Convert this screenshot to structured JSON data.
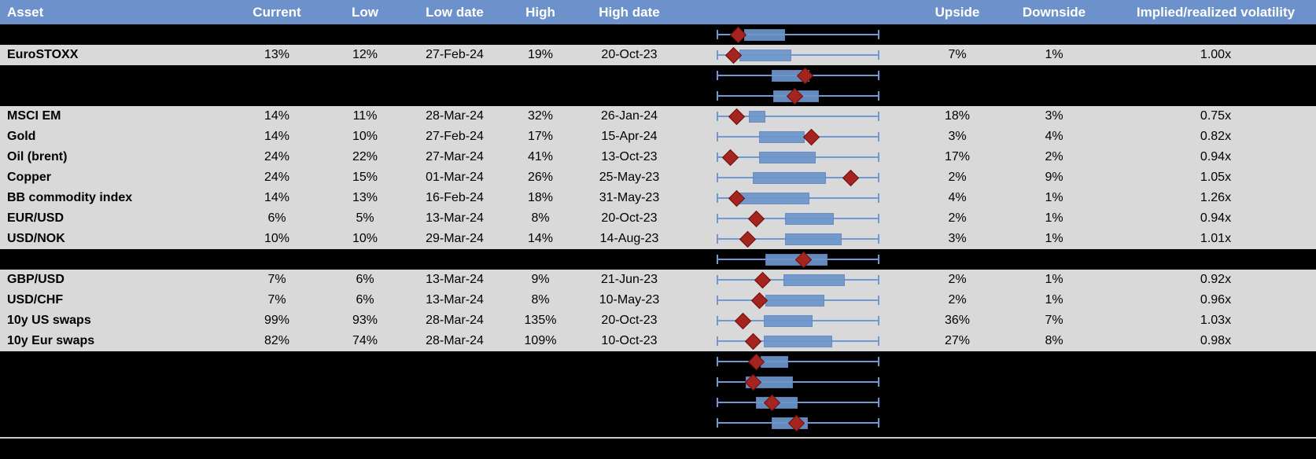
{
  "header": {
    "asset": "Asset",
    "current": "Current",
    "low": "Low",
    "low_date": "Low date",
    "high": "High",
    "high_date": "High date",
    "upside": "Upside",
    "downside": "Downside",
    "implied": "Implied/realized volatility"
  },
  "colors": {
    "header_bg": "#6D92CB",
    "header_text": "#FFFFFF",
    "row_bg": "#D9D9D9",
    "band_bg": "#000000",
    "text": "#000000",
    "whisker": "#6F99D3",
    "box_fill": "#6D96CB",
    "box_border": "#6287BD",
    "marker": "#A42420",
    "separator": "#C9C9C9"
  },
  "rows": [
    {
      "kind": "band",
      "plot": {
        "q1": 17,
        "q3": 41,
        "marker": 13
      }
    },
    {
      "kind": "data",
      "asset": "EuroSTOXX",
      "current": "13%",
      "low": "12%",
      "low_date": "27-Feb-24",
      "high": "19%",
      "high_date": "20-Oct-23",
      "upside": "7%",
      "downside": "1%",
      "implied": "1.00x",
      "plot": {
        "q1": 14,
        "q3": 45,
        "marker": 10
      }
    },
    {
      "kind": "band",
      "plot": {
        "q1": 34,
        "q3": 56,
        "marker": 54
      }
    },
    {
      "kind": "band",
      "plot": {
        "q1": 35,
        "q3": 62,
        "marker": 48
      }
    },
    {
      "kind": "data",
      "asset": "MSCI EM",
      "current": "14%",
      "low": "11%",
      "low_date": "28-Mar-24",
      "high": "32%",
      "high_date": "26-Jan-24",
      "upside": "18%",
      "downside": "3%",
      "implied": "0.75x",
      "plot": {
        "q1": 20,
        "q3": 29,
        "marker": 12
      }
    },
    {
      "kind": "data",
      "asset": "Gold",
      "current": "14%",
      "low": "10%",
      "low_date": "27-Feb-24",
      "high": "17%",
      "high_date": "15-Apr-24",
      "upside": "3%",
      "downside": "4%",
      "implied": "0.82x",
      "plot": {
        "q1": 26,
        "q3": 53,
        "marker": 58
      }
    },
    {
      "kind": "data",
      "asset": "Oil (brent)",
      "current": "24%",
      "low": "22%",
      "low_date": "27-Mar-24",
      "high": "41%",
      "high_date": "13-Oct-23",
      "upside": "17%",
      "downside": "2%",
      "implied": "0.94x",
      "plot": {
        "q1": 26,
        "q3": 60,
        "marker": 8
      }
    },
    {
      "kind": "data",
      "asset": "Copper",
      "current": "24%",
      "low": "15%",
      "low_date": "01-Mar-24",
      "high": "26%",
      "high_date": "25-May-23",
      "upside": "2%",
      "downside": "9%",
      "implied": "1.05x",
      "plot": {
        "q1": 22,
        "q3": 66,
        "marker": 82
      }
    },
    {
      "kind": "data",
      "asset": "BB commodity index",
      "current": "14%",
      "low": "13%",
      "low_date": "16-Feb-24",
      "high": "18%",
      "high_date": "31-May-23",
      "upside": "4%",
      "downside": "1%",
      "implied": "1.26x",
      "plot": {
        "q1": 12,
        "q3": 56,
        "marker": 12
      }
    },
    {
      "kind": "data",
      "asset": "EUR/USD",
      "current": "6%",
      "low": "5%",
      "low_date": "13-Mar-24",
      "high": "8%",
      "high_date": "20-Oct-23",
      "upside": "2%",
      "downside": "1%",
      "implied": "0.94x",
      "plot": {
        "q1": 42,
        "q3": 71,
        "marker": 24
      }
    },
    {
      "kind": "data",
      "asset": "USD/NOK",
      "current": "10%",
      "low": "10%",
      "low_date": "29-Mar-24",
      "high": "14%",
      "high_date": "14-Aug-23",
      "upside": "3%",
      "downside": "1%",
      "implied": "1.01x",
      "plot": {
        "q1": 42,
        "q3": 76,
        "marker": 19
      }
    },
    {
      "kind": "band",
      "plot": {
        "q1": 30,
        "q3": 67,
        "marker": 53
      }
    },
    {
      "kind": "data",
      "asset": "GBP/USD",
      "current": "7%",
      "low": "6%",
      "low_date": "13-Mar-24",
      "high": "9%",
      "high_date": "21-Jun-23",
      "upside": "2%",
      "downside": "1%",
      "implied": "0.92x",
      "plot": {
        "q1": 41,
        "q3": 78,
        "marker": 28
      }
    },
    {
      "kind": "data",
      "asset": "USD/CHF",
      "current": "7%",
      "low": "6%",
      "low_date": "13-Mar-24",
      "high": "8%",
      "high_date": "10-May-23",
      "upside": "2%",
      "downside": "1%",
      "implied": "0.96x",
      "plot": {
        "q1": 30,
        "q3": 65,
        "marker": 26
      }
    },
    {
      "kind": "data",
      "asset": "10y US swaps",
      "current": "99%",
      "low": "93%",
      "low_date": "28-Mar-24",
      "high": "135%",
      "high_date": "20-Oct-23",
      "upside": "36%",
      "downside": "7%",
      "implied": "1.03x",
      "plot": {
        "q1": 29,
        "q3": 58,
        "marker": 16
      }
    },
    {
      "kind": "data",
      "asset": "10y Eur swaps",
      "current": "82%",
      "low": "74%",
      "low_date": "28-Mar-24",
      "high": "109%",
      "high_date": "10-Oct-23",
      "upside": "27%",
      "downside": "8%",
      "implied": "0.98x",
      "plot": {
        "q1": 29,
        "q3": 70,
        "marker": 22
      }
    },
    {
      "kind": "band",
      "plot": {
        "q1": 27,
        "q3": 43,
        "marker": 24
      }
    },
    {
      "kind": "band",
      "plot": {
        "q1": 18,
        "q3": 46,
        "marker": 22
      }
    },
    {
      "kind": "band",
      "plot": {
        "q1": 24,
        "q3": 49,
        "marker": 34
      }
    },
    {
      "kind": "band",
      "plot": {
        "q1": 34,
        "q3": 55,
        "marker": 49
      }
    }
  ]
}
